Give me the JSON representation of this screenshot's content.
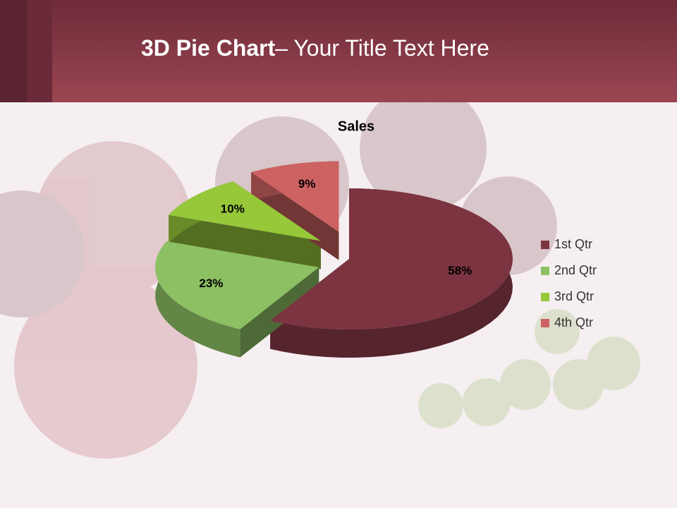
{
  "slide": {
    "title_bold": "3D Pie Chart",
    "title_rest": "– Your Title Text Here"
  },
  "chart_data": {
    "type": "pie",
    "title": "Sales",
    "categories": [
      "1st Qtr",
      "2nd Qtr",
      "3rd Qtr",
      "4th Qtr"
    ],
    "values": [
      58,
      23,
      10,
      9
    ],
    "value_labels": [
      "58%",
      "23%",
      "10%",
      "9%"
    ],
    "colors": [
      "#7b3440",
      "#8cc063",
      "#96c83a",
      "#cd6262"
    ],
    "legend": "right"
  }
}
